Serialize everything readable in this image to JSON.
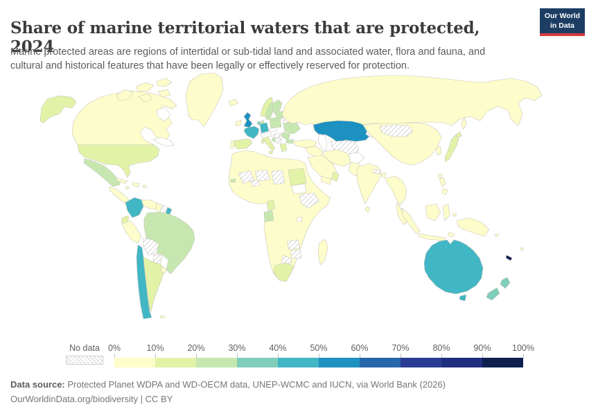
{
  "header": {
    "title": "Share of marine territorial waters that are protected, 2024",
    "subtitle": "Marine protected areas are regions of intertidal or sub-tidal land and associated water, flora and fauna, and cultural and historical features that have been legally or effectively reserved for protection.",
    "logo": {
      "line1": "Our World",
      "line2": "in Data",
      "bg": "#1d3d63",
      "accent": "#d73a3f"
    }
  },
  "legend": {
    "no_data_label": "No data",
    "ticks": [
      "0%",
      "10%",
      "20%",
      "30%",
      "40%",
      "50%",
      "60%",
      "70%",
      "80%",
      "90%",
      "100%"
    ],
    "colors": [
      "#fdfdcb",
      "#e2f3a7",
      "#c6e8b0",
      "#7fcdbb",
      "#41b6c4",
      "#1d91c0",
      "#2767a9",
      "#2b3d93",
      "#202f7d",
      "#0f1f50"
    ]
  },
  "footer": {
    "source_label": "Data source:",
    "source_text": " Protected Planet WDPA and WD-OECM data, UNEP-WCMC and IUCN, via World Bank (2026)",
    "citation": "OurWorldinData.org/biodiversity | CC BY"
  },
  "map": {
    "ocean": "#ffffff",
    "border": "#c9c4bc",
    "regions": {
      "alaska": 1,
      "canada": 0,
      "greenland": 0,
      "iceland": 0,
      "usa": 1,
      "mexico": 2,
      "central-america": 0,
      "panama": 2,
      "cuba": 0,
      "hispaniola": 0,
      "puerto-rico": 0,
      "jamaica": 0,
      "colombia": 4,
      "venezuela": 0,
      "guyana": 0,
      "suriname": "nd",
      "french-guiana": 4,
      "brazil": 2,
      "ecuador": 1,
      "peru": 0,
      "bolivia": "nd",
      "paraguay": "nd",
      "chile": 4,
      "argentina": 1,
      "uruguay": 0,
      "falklands": 0,
      "ireland": 0,
      "uk": 5,
      "norway": 1,
      "sweden": 2,
      "finland": 2,
      "baltics": 2,
      "denmark": 2,
      "germany": 4,
      "netherlands": 3,
      "france": 4,
      "spain": 1,
      "portugal": 0,
      "italy": 1,
      "sicily": 1,
      "sardinia": 1,
      "alpine": "none",
      "czech-slovakia": "none",
      "hungary": "nd",
      "balkans": "nd",
      "croatia": 2,
      "poland": 2,
      "belarus": "nd",
      "ukraine": 2,
      "romania": 2,
      "bulgaria": 2,
      "greece": 1,
      "russia": 0,
      "kazakhstan": 5,
      "central-asia": "nd",
      "kyrgyz-tajik": "nd",
      "turkey": 0,
      "levant-iraq": 0,
      "saudi-arabia": 0,
      "yemen": 0,
      "oman": 1,
      "iran": 0,
      "afghanistan": "none",
      "pakistan": 0,
      "india": 0,
      "sri-lanka": 0,
      "nepal": "nd",
      "bangladesh": 0,
      "china": 0,
      "mongolia": "nd",
      "korea": 0,
      "japan": 1,
      "hokkaido": 1,
      "sakhalin": 0,
      "indochina": 0,
      "malay": 0,
      "sumatra": 0,
      "borneo": 0,
      "java": 0,
      "sulawesi": 0,
      "moluccas": 0,
      "timor": 0,
      "philippines-1": 0,
      "philippines-2": 0,
      "taiwan": 0,
      "new-guinea": 0,
      "solomon": 0,
      "australia": 4,
      "tasmania": 4,
      "new-caledonia": 9,
      "nz-north": 3,
      "nz-south": 3,
      "fiji": 0,
      "africa": 0,
      "mali": "nd",
      "burkina": "nd",
      "niger": "nd",
      "chad": "nd",
      "sudan": 1,
      "south-sudan": "none",
      "ethiopia": "nd",
      "cameroon": 1,
      "gabon": 2,
      "zambia": "nd",
      "zimbabwe": "nd",
      "botswana": "nd",
      "south-africa": 1,
      "madagascar": 0,
      "senegal-gambia": 2
    }
  },
  "chart_data": {
    "type": "choropleth",
    "title": "Share of marine territorial waters that are protected, 2024",
    "unit": "%",
    "legend_position": "bottom",
    "color_scale": {
      "scheme": "YlGnBu",
      "bins": [
        "0-10%",
        "10-20%",
        "20-30%",
        "30-40%",
        "40-50%",
        "50-60%",
        "60-70%",
        "70-80%",
        "80-90%",
        "90-100%"
      ],
      "colors": [
        "#fdfdcb",
        "#e2f3a7",
        "#c6e8b0",
        "#7fcdbb",
        "#41b6c4",
        "#1d91c0",
        "#2767a9",
        "#2b3d93",
        "#202f7d",
        "#0f1f50"
      ],
      "no_data": "hatched"
    },
    "values_by_bin": {
      "0-10%": [
        "Canada",
        "Greenland",
        "Russia",
        "China",
        "India",
        "Indonesia",
        "Philippines",
        "Papua New Guinea",
        "Peru",
        "Venezuela",
        "Guyana",
        "Uruguay",
        "Cuba",
        "Haiti",
        "Dominican Republic",
        "Ireland",
        "Portugal",
        "Iceland",
        "Turkey",
        "Iran",
        "Iraq",
        "Saudi Arabia",
        "Yemen",
        "Pakistan",
        "Sri Lanka",
        "Myanmar",
        "Thailand",
        "Vietnam",
        "Malaysia",
        "South Korea",
        "Madagascar",
        "Morocco",
        "Algeria",
        "Libya",
        "Egypt",
        "Nigeria",
        "Angola",
        "Namibia",
        "Mozambique",
        "Tanzania",
        "Kenya",
        "Somalia",
        "Guatemala",
        "Honduras",
        "Nicaragua"
      ],
      "10-20%": [
        "United States",
        "Argentina",
        "Ecuador",
        "Spain",
        "Norway",
        "Italy",
        "Greece",
        "Japan",
        "South Africa",
        "Sudan",
        "Cameroon",
        "Oman"
      ],
      "20-30%": [
        "Mexico",
        "Brazil",
        "Sweden",
        "Finland",
        "Denmark",
        "Poland",
        "Estonia",
        "Latvia",
        "Lithuania",
        "Ukraine",
        "Romania",
        "Bulgaria",
        "Gabon"
      ],
      "30-40%": [
        "New Zealand",
        "Netherlands"
      ],
      "40-50%": [
        "France",
        "Germany",
        "Australia",
        "Chile",
        "Colombia",
        "French Guiana"
      ],
      "50-60%": [
        "United Kingdom",
        "Kazakhstan"
      ],
      "90-100%": [
        "New Caledonia"
      ],
      "no_data": [
        "Bolivia",
        "Paraguay",
        "Suriname",
        "Belarus",
        "Mongolia",
        "Uzbekistan",
        "Turkmenistan",
        "Kyrgyzstan",
        "Nepal",
        "Mali",
        "Burkina Faso",
        "Niger",
        "Chad",
        "Ethiopia",
        "Zambia",
        "Zimbabwe",
        "Botswana"
      ]
    }
  }
}
